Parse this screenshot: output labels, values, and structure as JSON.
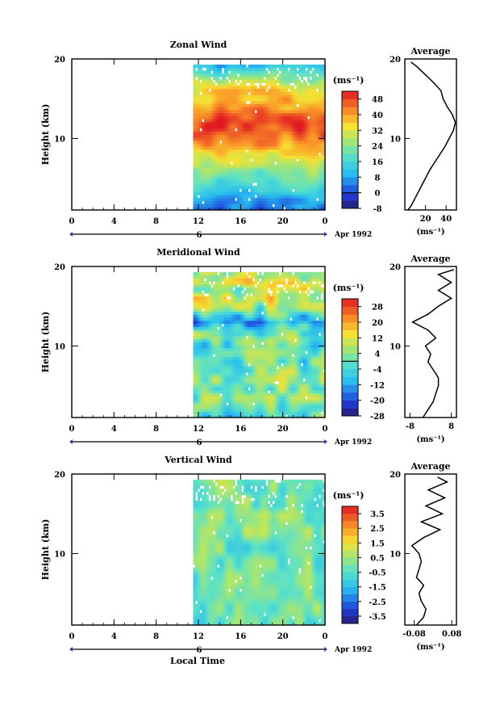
{
  "figure": {
    "xlabel_bottom": "Local Time",
    "profile_title": "Average",
    "unit_label": "(ms⁻¹)",
    "date_label": "Apr 1992",
    "day_label": "6"
  },
  "chart_data": [
    {
      "type": "heatmap",
      "title": "Zonal Wind",
      "ylabel": "Height (km)",
      "xlabel": "",
      "x_ticks": [
        "0",
        "4",
        "8",
        "12",
        "16",
        "20",
        "0"
      ],
      "xlim": [
        0,
        24
      ],
      "y_ticks": [
        "10",
        "20"
      ],
      "ylim": [
        1,
        20
      ],
      "data_start_hour": 11.5,
      "colorbar": {
        "unit": "(ms⁻¹)",
        "tick_labels": [
          "-8",
          "0",
          "8",
          "16",
          "24",
          "32",
          "40",
          "48"
        ],
        "levels": [
          -8,
          -4,
          0,
          4,
          8,
          12,
          16,
          20,
          24,
          28,
          32,
          36,
          40,
          44,
          48,
          52
        ],
        "zero_line": true
      },
      "profile": {
        "title": "Average",
        "xlabel": "(ms⁻¹)",
        "x_ticks": [
          "20",
          "40"
        ],
        "xlim": [
          0,
          50
        ],
        "y_ticks": [
          "10",
          "20"
        ],
        "heights": [
          1,
          1.5,
          2,
          3,
          4,
          5,
          6,
          7,
          8,
          9,
          10,
          11,
          12,
          13,
          14,
          15,
          16,
          17,
          18,
          19,
          19.6
        ],
        "values": [
          3,
          6,
          8,
          12,
          16,
          20,
          24,
          29,
          34,
          39,
          43,
          47,
          49,
          46,
          41,
          37,
          35,
          28,
          20,
          12,
          6
        ]
      }
    },
    {
      "type": "heatmap",
      "title": "Meridional Wind",
      "ylabel": "Height (km)",
      "xlabel": "",
      "x_ticks": [
        "0",
        "4",
        "8",
        "12",
        "16",
        "20",
        "0"
      ],
      "xlim": [
        0,
        24
      ],
      "y_ticks": [
        "10",
        "20"
      ],
      "ylim": [
        1,
        20
      ],
      "data_start_hour": 11.5,
      "colorbar": {
        "unit": "(ms⁻¹)",
        "tick_labels": [
          "-28",
          "-20",
          "-12",
          "-4",
          "4",
          "12",
          "20",
          "28"
        ],
        "levels": [
          -28,
          -24,
          -20,
          -16,
          -12,
          -8,
          -4,
          0,
          4,
          8,
          12,
          16,
          20,
          24,
          28,
          32
        ],
        "zero_line": true
      },
      "profile": {
        "title": "Average",
        "xlabel": "(ms⁻¹)",
        "x_ticks": [
          "-8",
          "8"
        ],
        "xlim": [
          -10,
          10
        ],
        "y_ticks": [
          "10",
          "20"
        ],
        "heights": [
          1,
          2,
          3,
          4,
          5,
          6,
          7,
          8,
          9,
          10,
          11,
          12,
          13,
          14,
          15,
          16,
          17,
          18,
          19,
          19.6
        ],
        "values": [
          -3,
          -1,
          1,
          2,
          3,
          3,
          1,
          -1,
          0,
          -2,
          2,
          -1,
          -7,
          -1,
          3,
          8,
          3,
          8,
          3,
          9
        ]
      }
    },
    {
      "type": "heatmap",
      "title": "Vertical Wind",
      "ylabel": "Height (km)",
      "xlabel": "Local Time",
      "x_ticks": [
        "0",
        "4",
        "8",
        "12",
        "16",
        "20",
        "0"
      ],
      "xlim": [
        0,
        24
      ],
      "y_ticks": [
        "10",
        "20"
      ],
      "ylim": [
        1,
        20
      ],
      "data_start_hour": 11.5,
      "colorbar": {
        "unit": "(ms⁻¹)",
        "tick_labels": [
          "-3.5",
          "-2.5",
          "-1.5",
          "-0.5",
          "0.5",
          "1.5",
          "2.5",
          "3.5"
        ],
        "levels": [
          -4,
          -3.5,
          -3,
          -2.5,
          -2,
          -1.5,
          -1,
          -0.5,
          0,
          0.5,
          1,
          1.5,
          2,
          2.5,
          3,
          3.5,
          4
        ],
        "zero_line": false
      },
      "profile": {
        "title": "Average",
        "xlabel": "(ms⁻¹)",
        "x_ticks": [
          "-0.08",
          "0.08"
        ],
        "xlim": [
          -0.12,
          0.1
        ],
        "y_ticks": [
          "10",
          "20"
        ],
        "heights": [
          1,
          2,
          3,
          4,
          5,
          6,
          7,
          8,
          9,
          10,
          11,
          12,
          13,
          14,
          15,
          16,
          17,
          18,
          19,
          19.6
        ],
        "values": [
          -0.07,
          -0.04,
          -0.03,
          -0.05,
          -0.06,
          -0.04,
          -0.07,
          -0.06,
          -0.05,
          -0.06,
          -0.09,
          -0.04,
          0.03,
          -0.05,
          0.04,
          -0.03,
          0.05,
          -0.02,
          0.06,
          0.02
        ]
      }
    }
  ]
}
